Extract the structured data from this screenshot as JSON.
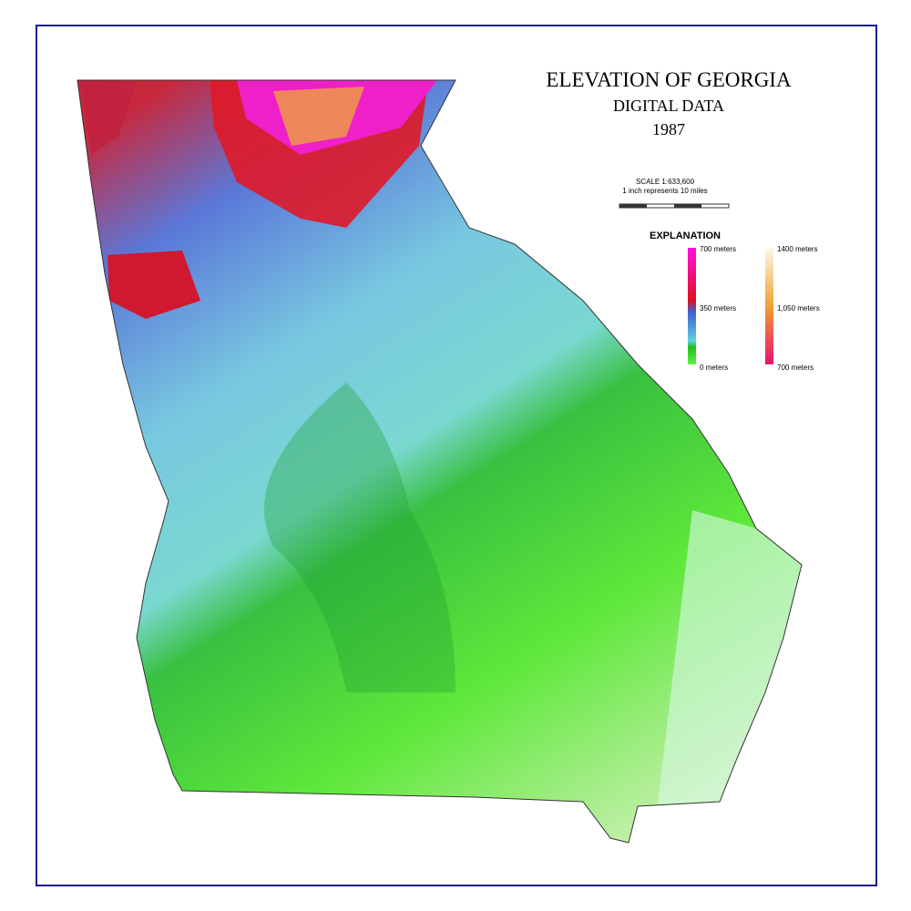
{
  "title": "ELEVATION OF GEORGIA",
  "subtitle": "DIGITAL DATA",
  "year": "1987",
  "scale": {
    "ratio": "SCALE 1:633,600",
    "text": "1 inch represents 10 miles"
  },
  "legend": {
    "title": "EXPLANATION",
    "left": [
      "700 meters",
      "350 meters",
      "0 meters"
    ],
    "right": [
      "1400 meters",
      "1,050 meters",
      "700 meters"
    ]
  }
}
